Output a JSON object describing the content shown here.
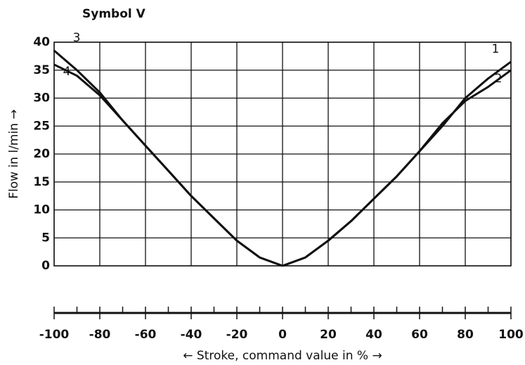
{
  "chart_data": {
    "type": "line",
    "title": "Symbol V",
    "ylabel": "Flow in l/min →",
    "xlabel": "← Stroke, command value in % →",
    "series": [
      {
        "name": "1",
        "color": "#111111",
        "x": [
          0,
          10,
          20,
          30,
          40,
          50,
          60,
          70,
          80,
          90,
          100
        ],
        "values": [
          0,
          1.5,
          4.5,
          8,
          12,
          16,
          20.5,
          25,
          30,
          33.5,
          36.5
        ]
      },
      {
        "name": "2",
        "color": "#111111",
        "x": [
          0,
          10,
          20,
          30,
          40,
          50,
          60,
          70,
          80,
          90,
          100
        ],
        "values": [
          0,
          1.5,
          4.5,
          8,
          12,
          16,
          20.5,
          25.5,
          29.5,
          32,
          35
        ]
      },
      {
        "name": "3",
        "color": "#111111",
        "x": [
          -100,
          -90,
          -80,
          -70,
          -60,
          -50,
          -40,
          -30,
          -20,
          -10,
          0
        ],
        "values": [
          38.5,
          35,
          31,
          26,
          21.5,
          17,
          12.5,
          8.5,
          4.5,
          1.5,
          0
        ]
      },
      {
        "name": "4",
        "color": "#111111",
        "x": [
          -100,
          -90,
          -80,
          -70,
          -60,
          -50,
          -40,
          -30,
          -20,
          -10,
          0
        ],
        "values": [
          36,
          34,
          30.5,
          26,
          21.5,
          17,
          12.5,
          8.5,
          4.5,
          1.5,
          0
        ]
      }
    ],
    "xlim": [
      -100,
      100
    ],
    "xticks": [
      -100,
      -80,
      -60,
      -40,
      -20,
      0,
      20,
      40,
      60,
      80,
      100
    ],
    "xminorticks": [
      -90,
      -70,
      -50,
      -30,
      -10,
      10,
      30,
      50,
      70,
      90
    ],
    "ylim": [
      0,
      40
    ],
    "yticks": [
      0,
      5,
      10,
      15,
      20,
      25,
      30,
      35,
      40
    ],
    "grid": true
  }
}
